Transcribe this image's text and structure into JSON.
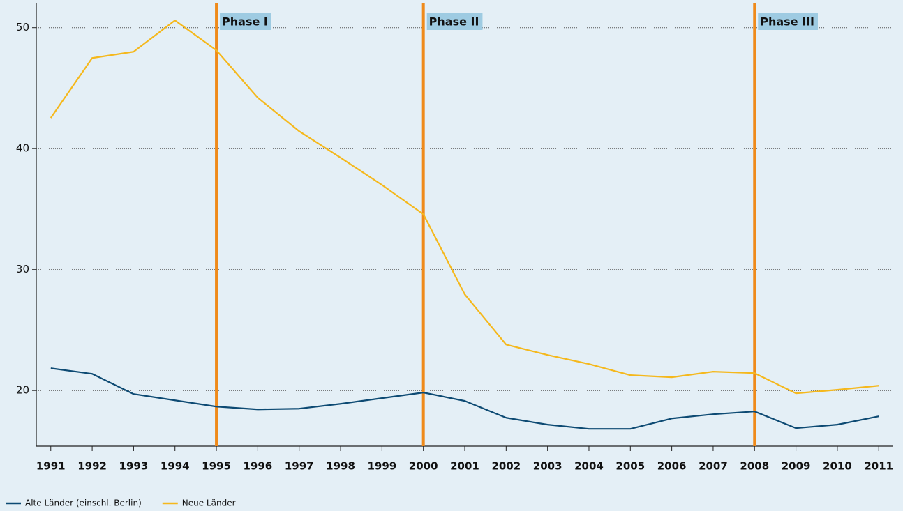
{
  "chart_data": {
    "type": "line",
    "x": [
      1991,
      1992,
      1993,
      1994,
      1995,
      1996,
      1997,
      1998,
      1999,
      2000,
      2001,
      2002,
      2003,
      2004,
      2005,
      2006,
      2007,
      2008,
      2009,
      2010,
      2011
    ],
    "series": [
      {
        "name": "Alte Länder (einschl. Berlin)",
        "color": "#0d4a73",
        "values": [
          21.84,
          21.38,
          19.71,
          19.19,
          18.67,
          18.44,
          18.5,
          18.9,
          19.37,
          19.83,
          19.14,
          17.75,
          17.18,
          16.83,
          16.83,
          17.69,
          18.04,
          18.27,
          16.89,
          17.18,
          17.87
        ]
      },
      {
        "name": "Neue Länder",
        "color": "#f5b81c",
        "values": [
          42.54,
          47.49,
          48.01,
          50.6,
          48.13,
          44.21,
          41.44,
          39.25,
          37.0,
          34.58,
          27.95,
          23.8,
          22.94,
          22.19,
          21.27,
          21.1,
          21.56,
          21.44,
          19.77,
          20.06,
          20.4
        ]
      }
    ],
    "annotations": [
      {
        "x": 1995,
        "label": "Phase I"
      },
      {
        "x": 2000,
        "label": "Phase II"
      },
      {
        "x": 2008,
        "label": "Phase III"
      }
    ],
    "annotation_color": "#ef8a1a",
    "xlim": [
      1990.65,
      2011.35
    ],
    "ylim": [
      15.4,
      52.0
    ],
    "yticks": [
      20,
      30,
      40,
      50
    ],
    "grid": true,
    "legend": "bottom-left"
  }
}
